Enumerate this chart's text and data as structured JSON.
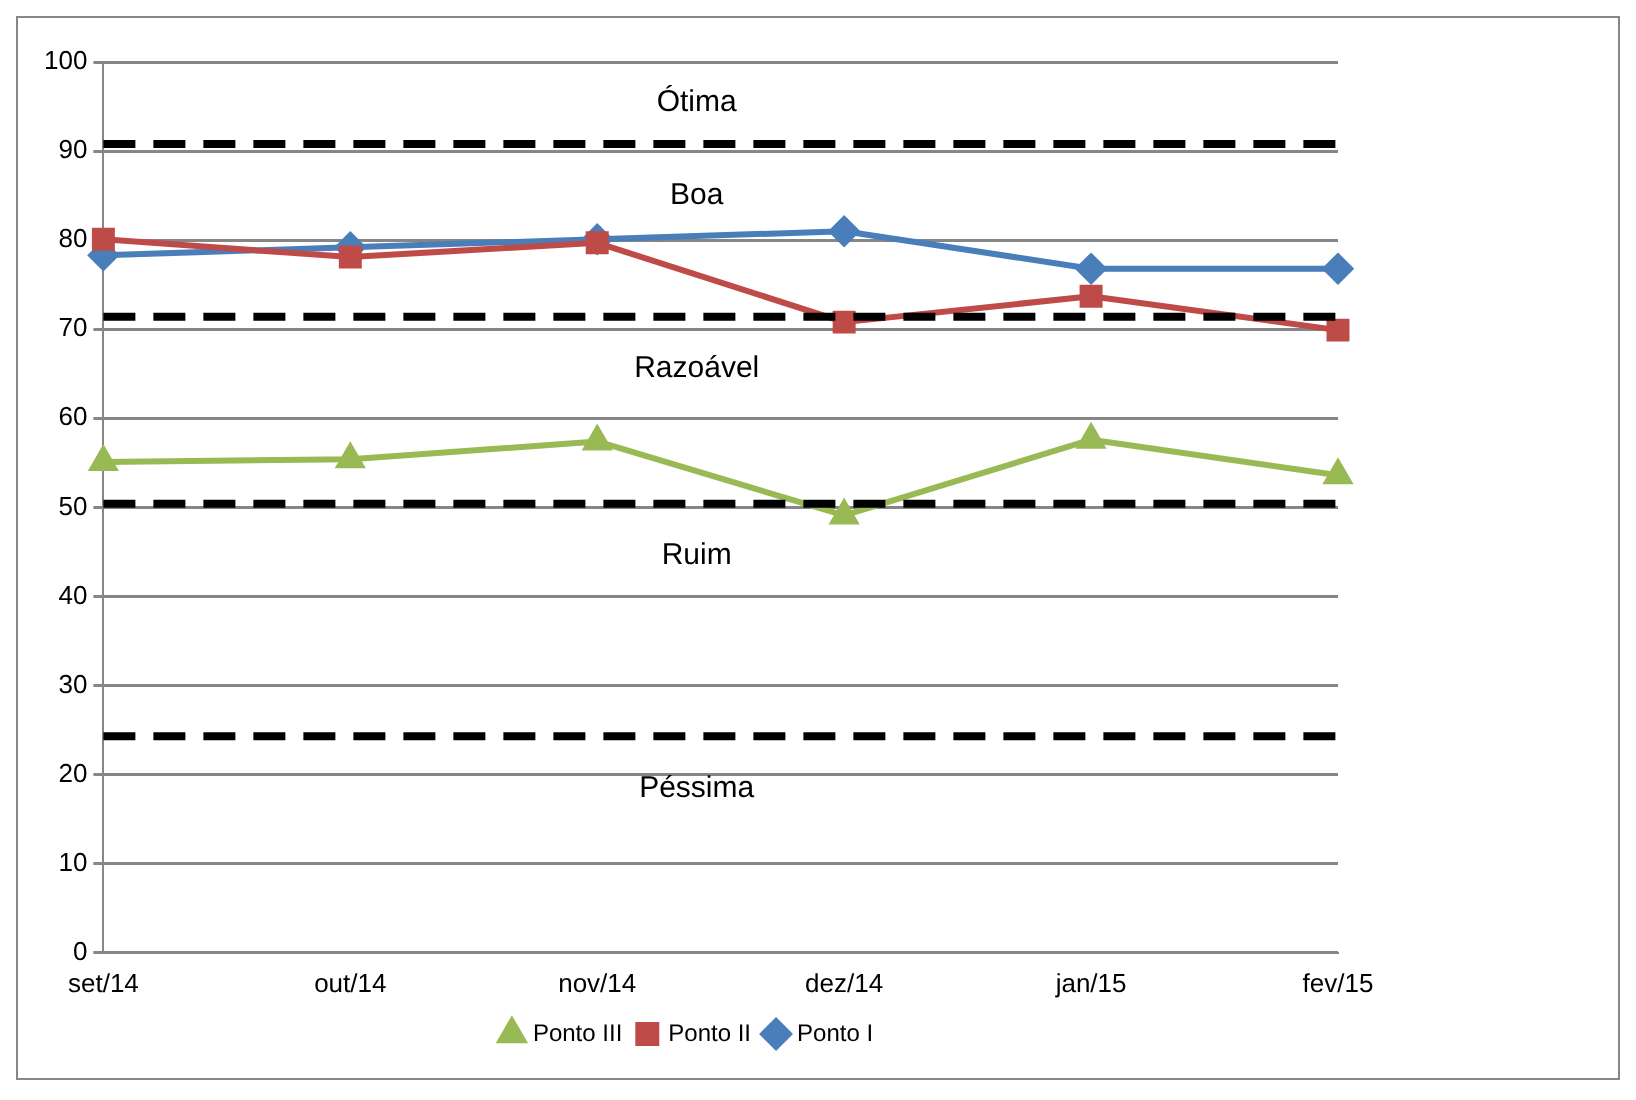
{
  "chart_data": {
    "type": "line",
    "categories": [
      "set/14",
      "out/14",
      "nov/14",
      "dez/14",
      "jan/15",
      "fev/15"
    ],
    "series": [
      {
        "name": "Ponto I",
        "color": "#4a7ebb",
        "marker": "diamond",
        "values": [
          78.3,
          79.2,
          80.1,
          81.0,
          76.8,
          76.8
        ]
      },
      {
        "name": "Ponto II",
        "color": "#be4b48",
        "marker": "square",
        "values": [
          80.1,
          78.1,
          79.7,
          70.8,
          73.7,
          69.9
        ]
      },
      {
        "name": "Ponto III",
        "color": "#98b954",
        "marker": "triangle",
        "values": [
          55.1,
          55.4,
          57.4,
          49.1,
          57.6,
          53.6
        ]
      }
    ],
    "ylim": [
      0,
      100
    ],
    "yticks": [
      0,
      10,
      20,
      30,
      40,
      50,
      60,
      70,
      80,
      90,
      100
    ],
    "grid": "y",
    "legend": "bottom",
    "line_style": "solid",
    "ref_lines": [
      {
        "axis": "y",
        "value": 90.8,
        "color": "#000000",
        "line_style": "dashed"
      },
      {
        "axis": "y",
        "value": 71.4,
        "color": "#000000",
        "line_style": "dashed"
      },
      {
        "axis": "y",
        "value": 50.4,
        "color": "#000000",
        "line_style": "dashed"
      },
      {
        "axis": "y",
        "value": 24.3,
        "color": "#000000",
        "line_style": "dashed"
      }
    ],
    "annotations": [
      "Ótima",
      "Boa",
      "Razoável",
      "Ruim",
      "Péssima"
    ]
  }
}
